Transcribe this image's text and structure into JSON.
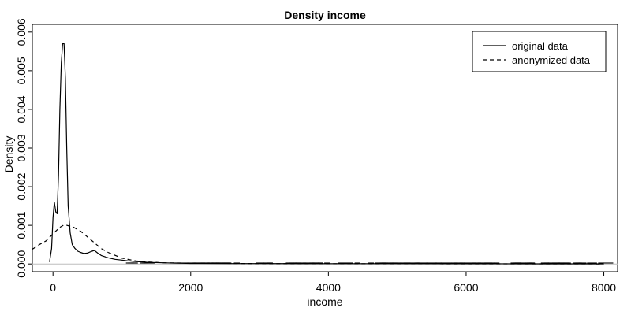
{
  "chart_data": {
    "type": "line",
    "title": "Density income",
    "xlabel": "income",
    "ylabel": "Density",
    "xlim": [
      -300,
      8200
    ],
    "ylim": [
      -0.0002,
      0.0062
    ],
    "x_ticks": [
      0,
      2000,
      4000,
      6000,
      8000
    ],
    "x_tick_labels": [
      "0",
      "2000",
      "4000",
      "6000",
      "8000"
    ],
    "y_ticks": [
      0,
      0.001,
      0.002,
      0.003,
      0.004,
      0.005,
      0.006
    ],
    "y_tick_labels": [
      "0.000",
      "0.001",
      "0.002",
      "0.003",
      "0.004",
      "0.005",
      "0.006"
    ],
    "grid": false,
    "legend_position": "top-right",
    "series": [
      {
        "name": "original data",
        "style": "solid",
        "x": [
          -50,
          -20,
          0,
          20,
          40,
          60,
          80,
          100,
          120,
          140,
          160,
          180,
          200,
          220,
          250,
          280,
          320,
          360,
          400,
          450,
          500,
          550,
          600,
          650,
          700,
          800,
          900,
          1000,
          1100,
          1200,
          1400,
          1600,
          1800,
          2000,
          2500,
          3000,
          4000,
          5000,
          6000,
          7000,
          8000
        ],
        "values": [
          5e-05,
          0.0004,
          0.0012,
          0.0016,
          0.00135,
          0.0013,
          0.0023,
          0.004,
          0.0052,
          0.0057,
          0.0057,
          0.0048,
          0.003,
          0.0015,
          0.0008,
          0.0005,
          0.0004,
          0.00033,
          0.0003,
          0.00027,
          0.00028,
          0.00032,
          0.00035,
          0.00028,
          0.00022,
          0.00016,
          0.00012,
          0.0001,
          8e-05,
          6e-05,
          4e-05,
          3e-05,
          2e-05,
          1.5e-05,
          1e-05,
          1e-05,
          8e-06,
          8e-06,
          6e-06,
          4e-06,
          3e-06
        ]
      },
      {
        "name": "anonymized data",
        "style": "dashed",
        "x": [
          -300,
          -200,
          -100,
          0,
          100,
          150,
          200,
          300,
          400,
          500,
          600,
          700,
          800,
          1000,
          1200,
          1400,
          1600,
          2000,
          3000,
          4000,
          5000,
          6000,
          7000,
          8000
        ],
        "values": [
          0.00038,
          0.0005,
          0.0006,
          0.00078,
          0.00095,
          0.001,
          0.001,
          0.00095,
          0.00085,
          0.0007,
          0.00055,
          0.0004,
          0.0003,
          0.00015,
          8e-05,
          5e-05,
          3e-05,
          2e-05,
          1e-05,
          8e-06,
          6e-06,
          4e-06,
          3e-06,
          2e-06
        ]
      }
    ]
  }
}
